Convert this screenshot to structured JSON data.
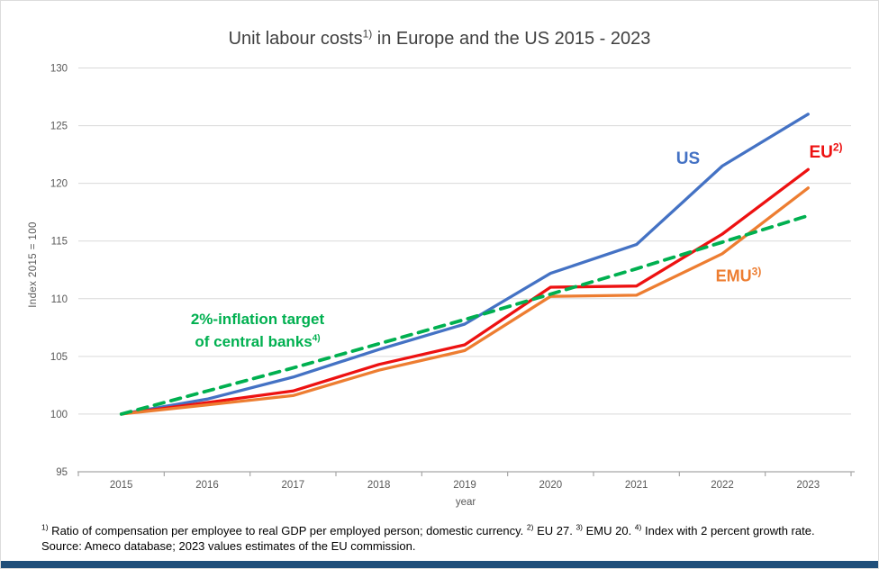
{
  "title": {
    "pre": "Unit labour costs",
    "sup": "1)",
    "post": " in Europe and the US 2015 - 2023"
  },
  "chart_data": {
    "type": "line",
    "title": "Unit labour costs 1) in Europe and the US 2015 - 2023",
    "categories": [
      "2015",
      "2016",
      "2017",
      "2018",
      "2019",
      "2020",
      "2021",
      "2022",
      "2023"
    ],
    "series": [
      {
        "name": "US",
        "color": "#4472C4",
        "dash": false,
        "values": [
          100,
          101.3,
          103.2,
          105.6,
          107.8,
          112.2,
          114.7,
          121.5,
          126.0
        ]
      },
      {
        "name": "EU",
        "color": "#ED1111",
        "dash": false,
        "values": [
          100,
          101.0,
          102.0,
          104.3,
          106.0,
          111.0,
          111.1,
          115.6,
          121.2
        ]
      },
      {
        "name": "EMU",
        "color": "#ED7D31",
        "dash": false,
        "values": [
          100,
          100.8,
          101.6,
          103.8,
          105.5,
          110.2,
          110.3,
          113.9,
          119.6
        ]
      },
      {
        "name": "2%-inflation target",
        "color": "#00B050",
        "dash": true,
        "values": [
          100,
          102.0,
          104.0,
          106.1,
          108.2,
          110.4,
          112.6,
          114.9,
          117.2
        ]
      }
    ],
    "xlabel": "year",
    "ylabel": "Index 2015 = 100",
    "ylim": [
      95,
      130
    ],
    "yticks": [
      95,
      100,
      105,
      110,
      115,
      120,
      125,
      130
    ],
    "grid": true,
    "legend_position": "inline-labels"
  },
  "series_labels": {
    "us": {
      "text": "US",
      "sup": ""
    },
    "eu": {
      "text": "EU",
      "sup": "2)"
    },
    "emu": {
      "text": "EMU",
      "sup": "3)"
    }
  },
  "annotation": {
    "line1": "2%-inflation target",
    "line2": "of central banks",
    "line2_sup": "4)"
  },
  "footnotes": {
    "line1_segments": [
      {
        "sup": "1)",
        "text": " Ratio of compensation per employee to real GDP per employed person; domestic currency. "
      },
      {
        "sup": "2)",
        "text": " EU 27. "
      },
      {
        "sup": "3)",
        "text": " EMU 20. "
      },
      {
        "sup": "4)",
        "text": " Index with 2 percent growth rate."
      }
    ],
    "source": "Source: Ameco database; 2023 values estimates of the EU commission."
  },
  "colors": {
    "gridline": "#D9D9D9",
    "axis_line": "#A6A6A6",
    "tick_text": "#595959",
    "title_text": "#404040",
    "bottom_bar": "#1F4E79"
  }
}
